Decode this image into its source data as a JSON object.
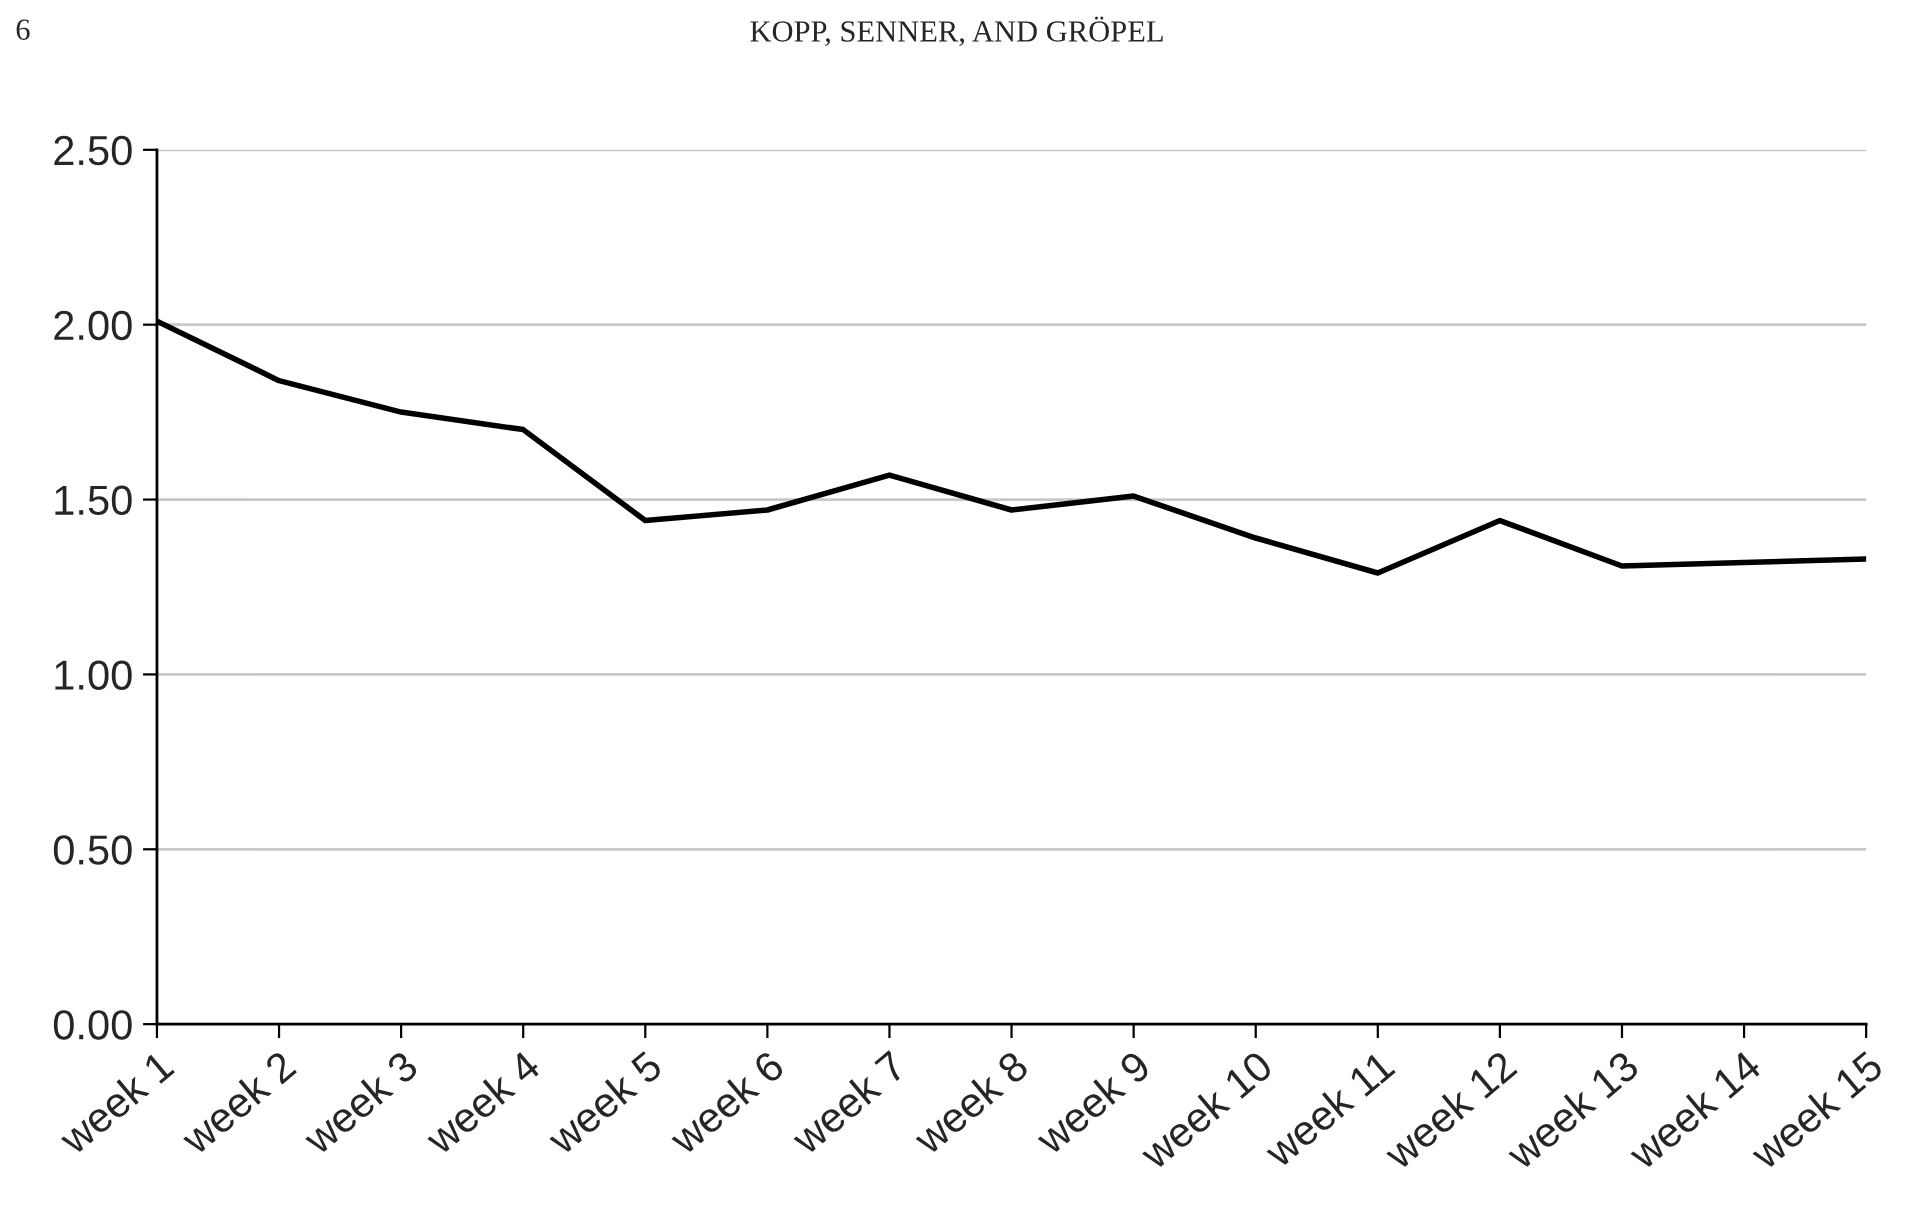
{
  "chart_data": {
    "type": "line",
    "annotations": [
      "6",
      "KOPP, SENNER, AND GRÖPEL"
    ],
    "categories": [
      "week 1",
      "week 2",
      "week 3",
      "week 4",
      "week 5",
      "week 6",
      "week 7",
      "week 8",
      "week 9",
      "week 10",
      "week 11",
      "week 12",
      "week 13",
      "week 14",
      "week 15"
    ],
    "series": [
      {
        "color": "#000000",
        "values": [
          2.01,
          1.84,
          1.75,
          1.7,
          1.44,
          1.47,
          1.57,
          1.47,
          1.51,
          1.39,
          1.29,
          1.44,
          1.31,
          1.32,
          1.33
        ]
      }
    ],
    "ylim": [
      0,
      2.5
    ],
    "yticks": [
      {
        "value": 0,
        "label": "0.00"
      },
      {
        "value": 0.5,
        "label": "0.50"
      },
      {
        "value": 1,
        "label": "1.00"
      },
      {
        "value": 1.5,
        "label": "1.50"
      },
      {
        "value": 2,
        "label": "2.00"
      },
      {
        "value": 2.5,
        "label": "2.50"
      }
    ],
    "grid": "y",
    "marker": "none",
    "line_style": "solid",
    "legend": false
  }
}
